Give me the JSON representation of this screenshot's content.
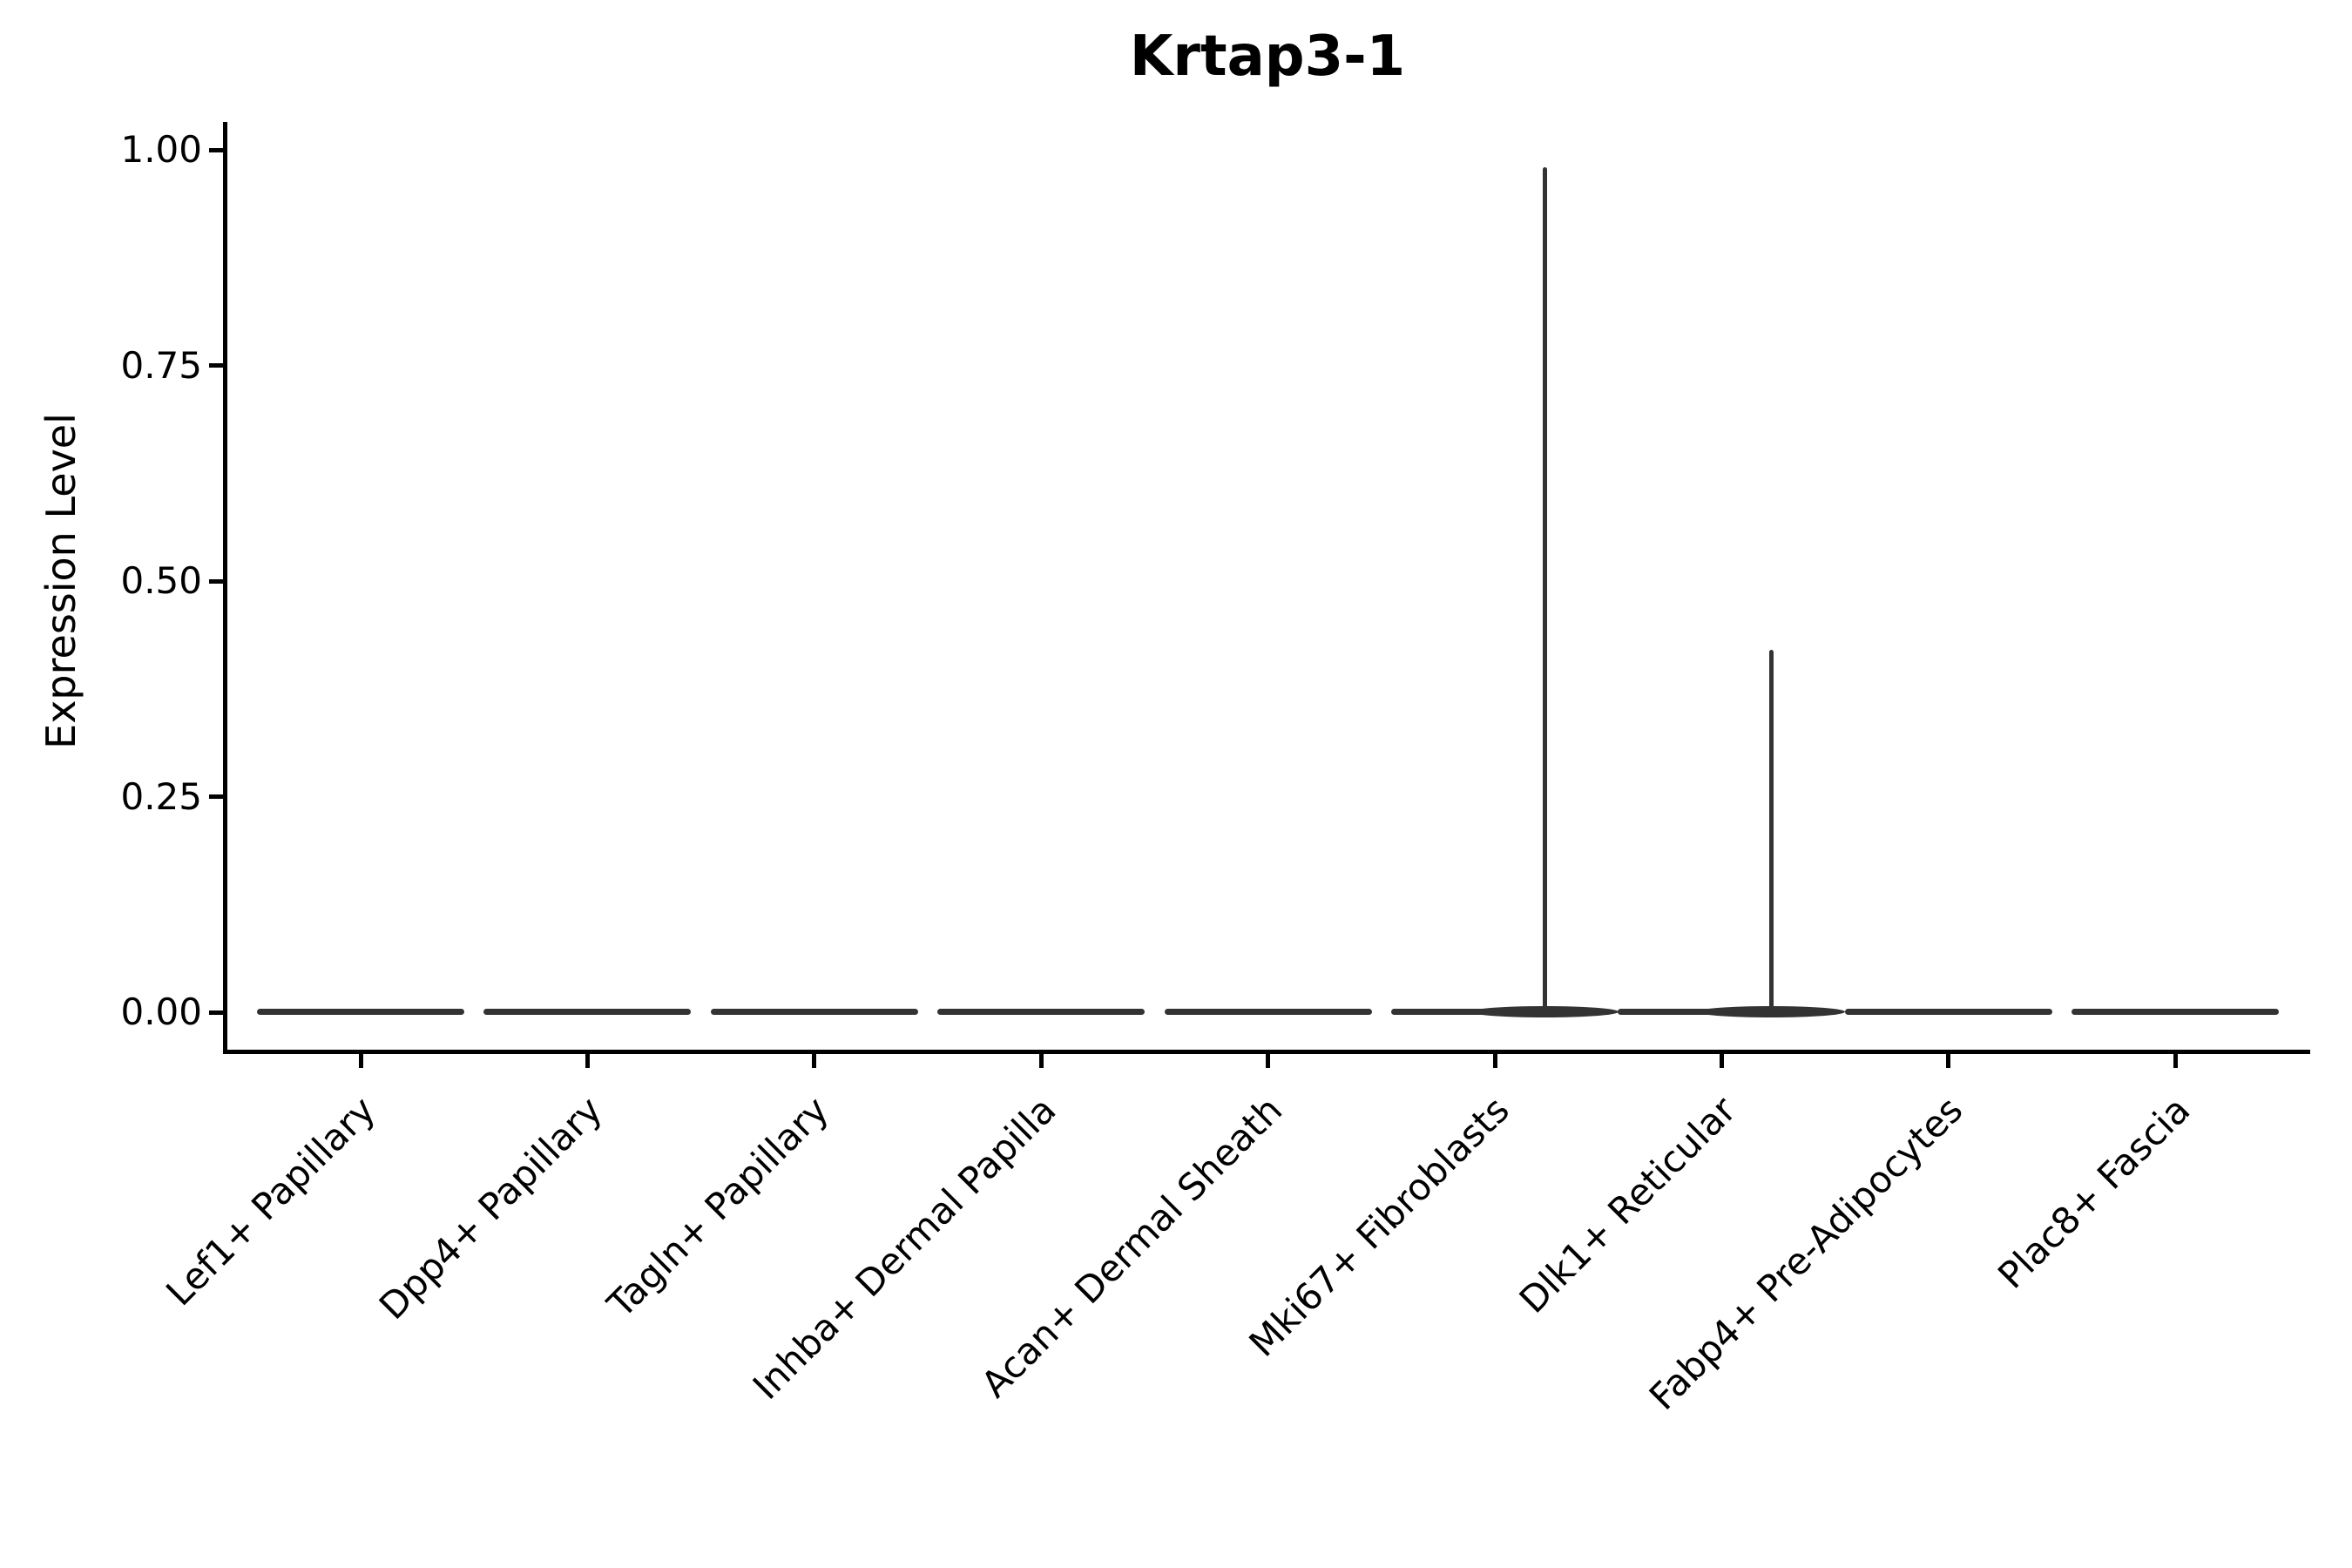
{
  "title": "Krtap3-1",
  "ylabel": "Expression Level",
  "chart_data": {
    "type": "violin",
    "title": "Krtap3-1",
    "xlabel": "",
    "ylabel": "Expression Level",
    "ylim": [
      0,
      1.03
    ],
    "grid": false,
    "legend": "none",
    "yticks": [
      {
        "value": 1.0,
        "label": "1.00"
      },
      {
        "value": 0.75,
        "label": "0.75"
      },
      {
        "value": 0.5,
        "label": "0.50"
      },
      {
        "value": 0.25,
        "label": "0.25"
      },
      {
        "value": 0.0,
        "label": "0.00"
      }
    ],
    "categories": [
      "Lef1+ Papillary",
      "Dpp4+ Papillary",
      "Tagln+ Papillary",
      "Inhba+ Dermal Papilla",
      "Acan+ Dermal Sheath",
      "Mki67+ Fibroblasts",
      "Dlk1+ Reticular",
      "Fabp4+ Pre-Adipocytes",
      "Plac8+ Fascia"
    ],
    "series": [
      {
        "name": "Lef1+ Papillary",
        "baseline_expression": 0,
        "max_expression": 0.0,
        "has_spike": false
      },
      {
        "name": "Dpp4+ Papillary",
        "baseline_expression": 0,
        "max_expression": 0.0,
        "has_spike": false
      },
      {
        "name": "Tagln+ Papillary",
        "baseline_expression": 0,
        "max_expression": 0.0,
        "has_spike": false
      },
      {
        "name": "Inhba+ Dermal Papilla",
        "baseline_expression": 0,
        "max_expression": 0.0,
        "has_spike": false
      },
      {
        "name": "Acan+ Dermal Sheath",
        "baseline_expression": 0,
        "max_expression": 0.0,
        "has_spike": false
      },
      {
        "name": "Mki67+ Fibroblasts",
        "baseline_expression": 0,
        "max_expression": 0.98,
        "has_spike": true
      },
      {
        "name": "Dlk1+ Reticular",
        "baseline_expression": 0,
        "max_expression": 0.42,
        "has_spike": true
      },
      {
        "name": "Fabp4+ Pre-Adipocytes",
        "baseline_expression": 0,
        "max_expression": 0.0,
        "has_spike": false
      },
      {
        "name": "Plac8+ Fascia",
        "baseline_expression": 0,
        "max_expression": 0.0,
        "has_spike": false
      }
    ],
    "violin_color": "#333333",
    "axis_color": "#000000"
  }
}
